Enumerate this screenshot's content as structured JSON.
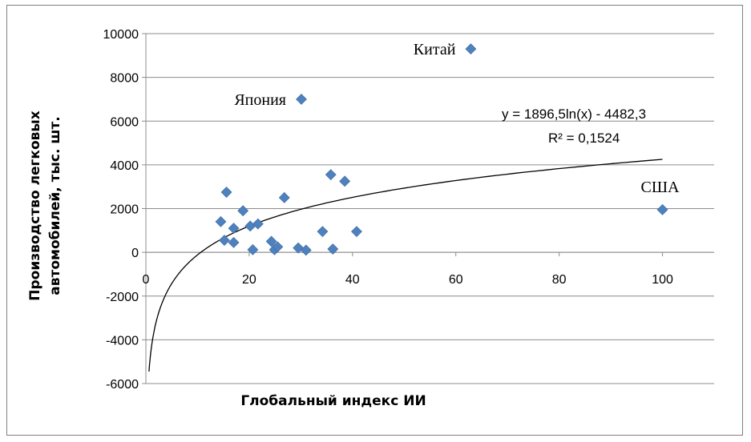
{
  "chart_data": {
    "type": "scatter",
    "title": "",
    "xlabel": "Глобальный индекс ИИ",
    "ylabel_lines": [
      "Производство легковых",
      "автомобилей, тыс. шт."
    ],
    "xlim": [
      0,
      110
    ],
    "ylim": [
      -6000,
      10000
    ],
    "x_ticks": [
      0,
      20,
      40,
      60,
      80,
      100
    ],
    "y_ticks": [
      -6000,
      -4000,
      -2000,
      0,
      2000,
      4000,
      6000,
      8000,
      10000
    ],
    "grid": "horizontal",
    "marker_color": "#4f81bd",
    "marker": "diamond",
    "points": [
      {
        "x": 14.5,
        "y": 1400
      },
      {
        "x": 15.2,
        "y": 550
      },
      {
        "x": 15.6,
        "y": 2750
      },
      {
        "x": 17.0,
        "y": 1100
      },
      {
        "x": 17.0,
        "y": 450
      },
      {
        "x": 18.8,
        "y": 1900
      },
      {
        "x": 20.2,
        "y": 1200
      },
      {
        "x": 20.7,
        "y": 120
      },
      {
        "x": 21.7,
        "y": 1300
      },
      {
        "x": 24.3,
        "y": 500
      },
      {
        "x": 24.9,
        "y": 120
      },
      {
        "x": 25.5,
        "y": 250
      },
      {
        "x": 26.8,
        "y": 2500
      },
      {
        "x": 29.5,
        "y": 200
      },
      {
        "x": 30.1,
        "y": 7000
      },
      {
        "x": 31.0,
        "y": 100
      },
      {
        "x": 34.2,
        "y": 950
      },
      {
        "x": 35.8,
        "y": 3550
      },
      {
        "x": 36.2,
        "y": 150
      },
      {
        "x": 38.5,
        "y": 3250
      },
      {
        "x": 40.8,
        "y": 950
      },
      {
        "x": 62.9,
        "y": 9300
      },
      {
        "x": 100,
        "y": 1950
      }
    ],
    "point_labels": [
      {
        "text": "Китай",
        "x": 62.9,
        "y": 9300
      },
      {
        "text": "Япония",
        "x": 30.1,
        "y": 7000
      },
      {
        "text": "США",
        "x": 100,
        "y": 1950
      }
    ],
    "trendline": {
      "type": "logarithmic",
      "a": 1896.5,
      "b": -4482.3,
      "x_range": [
        0.6,
        100
      ],
      "equation": "y = 1896,5ln(x) - 4482,3",
      "r2": "R² = 0,1524",
      "color": "#000000"
    }
  }
}
